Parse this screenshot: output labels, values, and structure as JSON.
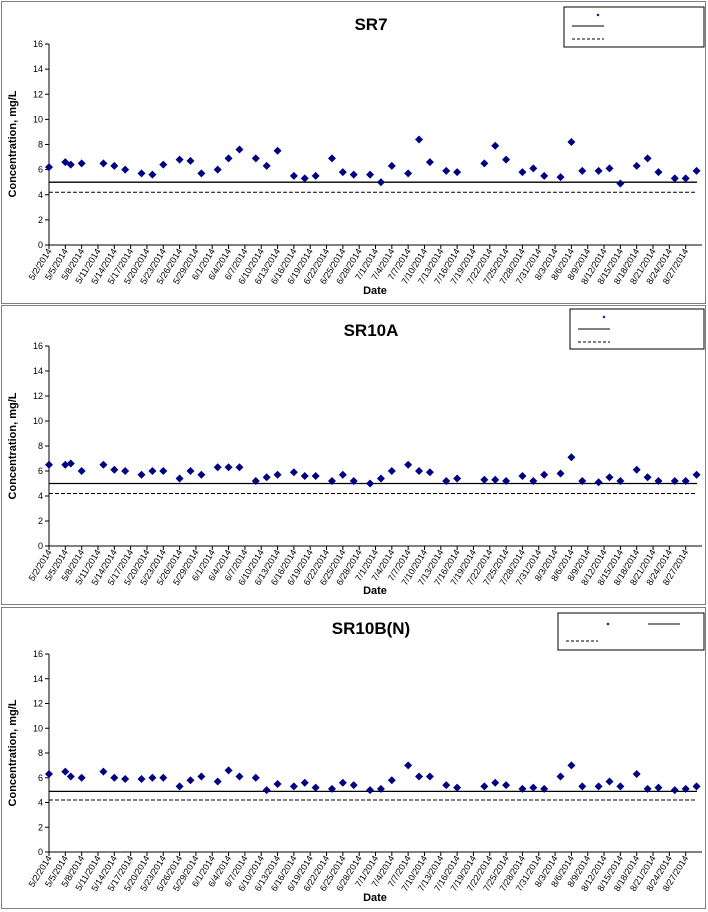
{
  "chart_data": [
    {
      "type": "scatter",
      "title": "SR7",
      "xlabel": "Date",
      "ylabel": "Concentration, mg/L",
      "ylim": [
        0,
        16
      ],
      "yticks": [
        0,
        2,
        4,
        6,
        8,
        10,
        12,
        14,
        16
      ],
      "xlim": [
        "5/2/2014",
        "8/30/2014"
      ],
      "xticks": [
        "5/2/2014",
        "5/5/2014",
        "5/8/2014",
        "5/11/2014",
        "5/14/2014",
        "5/17/2014",
        "5/20/2014",
        "5/23/2014",
        "5/26/2014",
        "5/29/2014",
        "6/1/2014",
        "6/4/2014",
        "6/7/2014",
        "6/10/2014",
        "6/13/2014",
        "6/16/2014",
        "6/19/2014",
        "6/22/2014",
        "6/25/2014",
        "6/28/2014",
        "7/1/2014",
        "7/4/2014",
        "7/7/2014",
        "7/10/2014",
        "7/13/2014",
        "7/16/2014",
        "7/19/2014",
        "7/22/2014",
        "7/25/2014",
        "7/28/2014",
        "7/31/2014",
        "8/3/2014",
        "8/6/2014",
        "8/9/2014",
        "8/12/2014",
        "8/15/2014",
        "8/18/2014",
        "8/21/2014",
        "8/24/2014",
        "8/27/2014"
      ],
      "grid": false,
      "legend_position": "top-right",
      "legend_entries": [
        "",
        "",
        ""
      ],
      "reference_lines": [
        {
          "style": "solid",
          "value": 5.0
        },
        {
          "style": "dashed",
          "value": 4.2
        }
      ],
      "points": [
        {
          "x": "5/2/2014",
          "y": 6.2
        },
        {
          "x": "5/5/2014",
          "y": 6.6
        },
        {
          "x": "5/6/2014",
          "y": 6.4
        },
        {
          "x": "5/8/2014",
          "y": 6.5
        },
        {
          "x": "5/12/2014",
          "y": 6.5
        },
        {
          "x": "5/14/2014",
          "y": 6.3
        },
        {
          "x": "5/16/2014",
          "y": 6.0
        },
        {
          "x": "5/19/2014",
          "y": 5.7
        },
        {
          "x": "5/21/2014",
          "y": 5.6
        },
        {
          "x": "5/23/2014",
          "y": 6.4
        },
        {
          "x": "5/26/2014",
          "y": 6.8
        },
        {
          "x": "5/28/2014",
          "y": 6.7
        },
        {
          "x": "5/30/2014",
          "y": 5.7
        },
        {
          "x": "6/2/2014",
          "y": 6.0
        },
        {
          "x": "6/4/2014",
          "y": 6.9
        },
        {
          "x": "6/6/2014",
          "y": 7.6
        },
        {
          "x": "6/9/2014",
          "y": 6.9
        },
        {
          "x": "6/11/2014",
          "y": 6.3
        },
        {
          "x": "6/13/2014",
          "y": 7.5
        },
        {
          "x": "6/16/2014",
          "y": 5.5
        },
        {
          "x": "6/18/2014",
          "y": 5.3
        },
        {
          "x": "6/20/2014",
          "y": 5.5
        },
        {
          "x": "6/23/2014",
          "y": 6.9
        },
        {
          "x": "6/25/2014",
          "y": 5.8
        },
        {
          "x": "6/27/2014",
          "y": 5.6
        },
        {
          "x": "6/30/2014",
          "y": 5.6
        },
        {
          "x": "7/2/2014",
          "y": 5.0
        },
        {
          "x": "7/4/2014",
          "y": 6.3
        },
        {
          "x": "7/7/2014",
          "y": 5.7
        },
        {
          "x": "7/9/2014",
          "y": 8.4
        },
        {
          "x": "7/11/2014",
          "y": 6.6
        },
        {
          "x": "7/14/2014",
          "y": 5.9
        },
        {
          "x": "7/16/2014",
          "y": 5.8
        },
        {
          "x": "7/21/2014",
          "y": 6.5
        },
        {
          "x": "7/23/2014",
          "y": 7.9
        },
        {
          "x": "7/25/2014",
          "y": 6.8
        },
        {
          "x": "7/28/2014",
          "y": 5.8
        },
        {
          "x": "7/30/2014",
          "y": 6.1
        },
        {
          "x": "8/1/2014",
          "y": 5.5
        },
        {
          "x": "8/4/2014",
          "y": 5.4
        },
        {
          "x": "8/6/2014",
          "y": 8.2
        },
        {
          "x": "8/8/2014",
          "y": 5.9
        },
        {
          "x": "8/11/2014",
          "y": 5.9
        },
        {
          "x": "8/13/2014",
          "y": 6.1
        },
        {
          "x": "8/15/2014",
          "y": 4.9
        },
        {
          "x": "8/18/2014",
          "y": 6.3
        },
        {
          "x": "8/20/2014",
          "y": 6.9
        },
        {
          "x": "8/22/2014",
          "y": 5.8
        },
        {
          "x": "8/25/2014",
          "y": 5.3
        },
        {
          "x": "8/27/2014",
          "y": 5.3
        },
        {
          "x": "8/29/2014",
          "y": 5.9
        }
      ]
    },
    {
      "type": "scatter",
      "title": "SR10A",
      "xlabel": "Date",
      "ylabel": "Concentration, mg/L",
      "ylim": [
        0,
        16
      ],
      "yticks": [
        0,
        2,
        4,
        6,
        8,
        10,
        12,
        14,
        16
      ],
      "xlim": [
        "5/2/2014",
        "8/30/2014"
      ],
      "xticks": [
        "5/2/2014",
        "5/5/2014",
        "5/8/2014",
        "5/11/2014",
        "5/14/2014",
        "5/17/2014",
        "5/20/2014",
        "5/23/2014",
        "5/26/2014",
        "5/29/2014",
        "6/1/2014",
        "6/4/2014",
        "6/7/2014",
        "6/10/2014",
        "6/13/2014",
        "6/16/2014",
        "6/19/2014",
        "6/22/2014",
        "6/25/2014",
        "6/28/2014",
        "7/1/2014",
        "7/4/2014",
        "7/7/2014",
        "7/10/2014",
        "7/13/2014",
        "7/16/2014",
        "7/19/2014",
        "7/22/2014",
        "7/25/2014",
        "7/28/2014",
        "7/31/2014",
        "8/3/2014",
        "8/6/2014",
        "8/9/2014",
        "8/12/2014",
        "8/15/2014",
        "8/18/2014",
        "8/21/2014",
        "8/24/2014",
        "8/27/2014"
      ],
      "grid": false,
      "legend_position": "top-right",
      "legend_entries": [
        "",
        "",
        ""
      ],
      "reference_lines": [
        {
          "style": "solid",
          "value": 5.0
        },
        {
          "style": "dashed",
          "value": 4.2
        }
      ],
      "points": [
        {
          "x": "5/2/2014",
          "y": 6.5
        },
        {
          "x": "5/5/2014",
          "y": 6.5
        },
        {
          "x": "5/6/2014",
          "y": 6.6
        },
        {
          "x": "5/8/2014",
          "y": 6.0
        },
        {
          "x": "5/12/2014",
          "y": 6.5
        },
        {
          "x": "5/14/2014",
          "y": 6.1
        },
        {
          "x": "5/16/2014",
          "y": 6.0
        },
        {
          "x": "5/19/2014",
          "y": 5.7
        },
        {
          "x": "5/21/2014",
          "y": 6.0
        },
        {
          "x": "5/23/2014",
          "y": 6.0
        },
        {
          "x": "5/26/2014",
          "y": 5.4
        },
        {
          "x": "5/28/2014",
          "y": 6.0
        },
        {
          "x": "5/30/2014",
          "y": 5.7
        },
        {
          "x": "6/2/2014",
          "y": 6.3
        },
        {
          "x": "6/4/2014",
          "y": 6.3
        },
        {
          "x": "6/6/2014",
          "y": 6.3
        },
        {
          "x": "6/9/2014",
          "y": 5.2
        },
        {
          "x": "6/11/2014",
          "y": 5.5
        },
        {
          "x": "6/13/2014",
          "y": 5.7
        },
        {
          "x": "6/16/2014",
          "y": 5.9
        },
        {
          "x": "6/18/2014",
          "y": 5.6
        },
        {
          "x": "6/20/2014",
          "y": 5.6
        },
        {
          "x": "6/23/2014",
          "y": 5.2
        },
        {
          "x": "6/25/2014",
          "y": 5.7
        },
        {
          "x": "6/27/2014",
          "y": 5.2
        },
        {
          "x": "6/30/2014",
          "y": 5.0
        },
        {
          "x": "7/2/2014",
          "y": 5.4
        },
        {
          "x": "7/4/2014",
          "y": 6.0
        },
        {
          "x": "7/7/2014",
          "y": 6.5
        },
        {
          "x": "7/9/2014",
          "y": 6.0
        },
        {
          "x": "7/11/2014",
          "y": 5.9
        },
        {
          "x": "7/14/2014",
          "y": 5.2
        },
        {
          "x": "7/16/2014",
          "y": 5.4
        },
        {
          "x": "7/21/2014",
          "y": 5.3
        },
        {
          "x": "7/23/2014",
          "y": 5.3
        },
        {
          "x": "7/25/2014",
          "y": 5.2
        },
        {
          "x": "7/28/2014",
          "y": 5.6
        },
        {
          "x": "7/30/2014",
          "y": 5.2
        },
        {
          "x": "8/1/2014",
          "y": 5.7
        },
        {
          "x": "8/4/2014",
          "y": 5.8
        },
        {
          "x": "8/6/2014",
          "y": 7.1
        },
        {
          "x": "8/8/2014",
          "y": 5.2
        },
        {
          "x": "8/11/2014",
          "y": 5.1
        },
        {
          "x": "8/13/2014",
          "y": 5.5
        },
        {
          "x": "8/15/2014",
          "y": 5.2
        },
        {
          "x": "8/18/2014",
          "y": 6.1
        },
        {
          "x": "8/20/2014",
          "y": 5.5
        },
        {
          "x": "8/22/2014",
          "y": 5.2
        },
        {
          "x": "8/25/2014",
          "y": 5.2
        },
        {
          "x": "8/27/2014",
          "y": 5.2
        },
        {
          "x": "8/29/2014",
          "y": 5.7
        }
      ]
    },
    {
      "type": "scatter",
      "title": "SR10B(N)",
      "xlabel": "Date",
      "ylabel": "Concentration, mg/L",
      "ylim": [
        0,
        16
      ],
      "yticks": [
        0,
        2,
        4,
        6,
        8,
        10,
        12,
        14,
        16
      ],
      "xlim": [
        "5/2/2014",
        "8/30/2014"
      ],
      "xticks": [
        "5/2/2014",
        "5/5/2014",
        "5/8/2014",
        "5/11/2014",
        "5/14/2014",
        "5/17/2014",
        "5/20/2014",
        "5/23/2014",
        "5/26/2014",
        "5/29/2014",
        "6/1/2014",
        "6/4/2014",
        "6/7/2014",
        "6/10/2014",
        "6/13/2014",
        "6/16/2014",
        "6/19/2014",
        "6/22/2014",
        "6/25/2014",
        "6/28/2014",
        "7/1/2014",
        "7/4/2014",
        "7/7/2014",
        "7/10/2014",
        "7/13/2014",
        "7/16/2014",
        "7/19/2014",
        "7/22/2014",
        "7/25/2014",
        "7/28/2014",
        "7/31/2014",
        "8/3/2014",
        "8/6/2014",
        "8/9/2014",
        "8/12/2014",
        "8/15/2014",
        "8/18/2014",
        "8/21/2014",
        "8/24/2014",
        "8/27/2014"
      ],
      "grid": false,
      "legend_position": "top-right",
      "legend_entries": [
        "",
        "",
        ""
      ],
      "reference_lines": [
        {
          "style": "solid",
          "value": 4.9
        },
        {
          "style": "dashed",
          "value": 4.2
        }
      ],
      "points": [
        {
          "x": "5/2/2014",
          "y": 6.3
        },
        {
          "x": "5/5/2014",
          "y": 6.5
        },
        {
          "x": "5/6/2014",
          "y": 6.1
        },
        {
          "x": "5/8/2014",
          "y": 6.0
        },
        {
          "x": "5/12/2014",
          "y": 6.5
        },
        {
          "x": "5/14/2014",
          "y": 6.0
        },
        {
          "x": "5/16/2014",
          "y": 5.9
        },
        {
          "x": "5/19/2014",
          "y": 5.9
        },
        {
          "x": "5/21/2014",
          "y": 6.0
        },
        {
          "x": "5/23/2014",
          "y": 6.0
        },
        {
          "x": "5/26/2014",
          "y": 5.3
        },
        {
          "x": "5/28/2014",
          "y": 5.8
        },
        {
          "x": "5/30/2014",
          "y": 6.1
        },
        {
          "x": "6/2/2014",
          "y": 5.7
        },
        {
          "x": "6/4/2014",
          "y": 6.6
        },
        {
          "x": "6/6/2014",
          "y": 6.1
        },
        {
          "x": "6/9/2014",
          "y": 6.0
        },
        {
          "x": "6/11/2014",
          "y": 5.0
        },
        {
          "x": "6/13/2014",
          "y": 5.5
        },
        {
          "x": "6/16/2014",
          "y": 5.3
        },
        {
          "x": "6/18/2014",
          "y": 5.6
        },
        {
          "x": "6/20/2014",
          "y": 5.2
        },
        {
          "x": "6/23/2014",
          "y": 5.1
        },
        {
          "x": "6/25/2014",
          "y": 5.6
        },
        {
          "x": "6/27/2014",
          "y": 5.4
        },
        {
          "x": "6/30/2014",
          "y": 5.0
        },
        {
          "x": "7/2/2014",
          "y": 5.1
        },
        {
          "x": "7/4/2014",
          "y": 5.8
        },
        {
          "x": "7/7/2014",
          "y": 7.0
        },
        {
          "x": "7/9/2014",
          "y": 6.1
        },
        {
          "x": "7/11/2014",
          "y": 6.1
        },
        {
          "x": "7/14/2014",
          "y": 5.4
        },
        {
          "x": "7/16/2014",
          "y": 5.2
        },
        {
          "x": "7/21/2014",
          "y": 5.3
        },
        {
          "x": "7/23/2014",
          "y": 5.6
        },
        {
          "x": "7/25/2014",
          "y": 5.4
        },
        {
          "x": "7/28/2014",
          "y": 5.1
        },
        {
          "x": "7/30/2014",
          "y": 5.2
        },
        {
          "x": "8/1/2014",
          "y": 5.1
        },
        {
          "x": "8/4/2014",
          "y": 6.1
        },
        {
          "x": "8/6/2014",
          "y": 7.0
        },
        {
          "x": "8/8/2014",
          "y": 5.3
        },
        {
          "x": "8/11/2014",
          "y": 5.3
        },
        {
          "x": "8/13/2014",
          "y": 5.7
        },
        {
          "x": "8/15/2014",
          "y": 5.3
        },
        {
          "x": "8/18/2014",
          "y": 6.3
        },
        {
          "x": "8/20/2014",
          "y": 5.1
        },
        {
          "x": "8/22/2014",
          "y": 5.2
        },
        {
          "x": "8/25/2014",
          "y": 5.0
        },
        {
          "x": "8/27/2014",
          "y": 5.1
        },
        {
          "x": "8/29/2014",
          "y": 5.3
        }
      ]
    }
  ]
}
